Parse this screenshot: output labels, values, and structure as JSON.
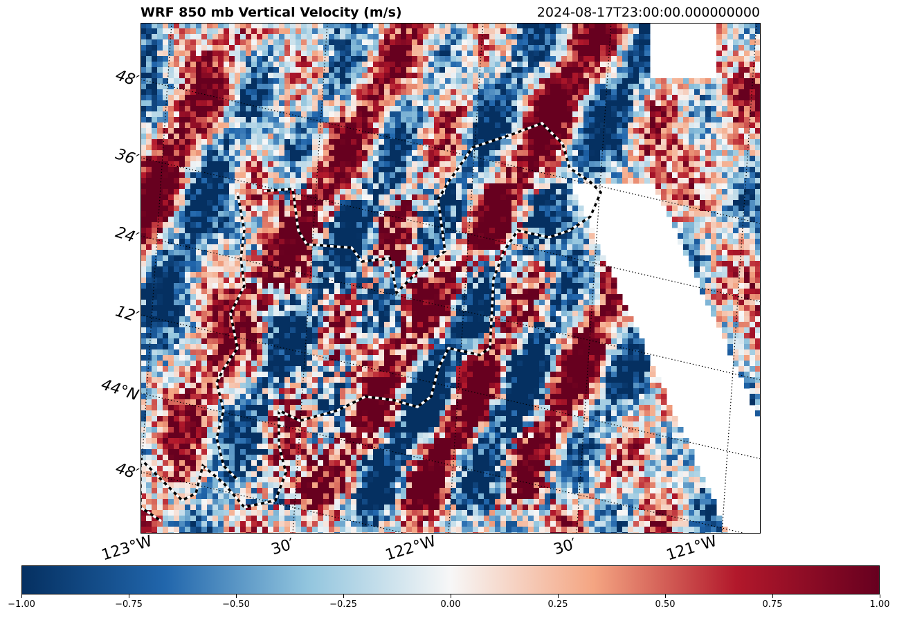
{
  "chart_data": {
    "type": "heatmap",
    "title": "WRF 850 mb Vertical Velocity (m/s)",
    "time_label": "2024-08-17T23:00:00.000000000",
    "variable": "Vertical Velocity",
    "units": "m/s",
    "level": "850 mb",
    "lat_labels": [
      "48′",
      "36′",
      "24′",
      "12′",
      "44°N",
      "48′"
    ],
    "lat_values": [
      44.8,
      44.6,
      44.4,
      44.2,
      44.0,
      43.8
    ],
    "lon_labels": [
      "123°W",
      "30′",
      "122°W",
      "30′",
      "121°W"
    ],
    "lon_values": [
      -123.0,
      -122.5,
      -122.0,
      -121.5,
      -121.0
    ],
    "colormap": "RdBu_r",
    "vmin": -1.0,
    "vmax": 1.0,
    "colorbar_ticks": [
      "−1.00",
      "−0.75",
      "−0.50",
      "−0.25",
      "0.00",
      "0.25",
      "0.50",
      "0.75",
      "1.00"
    ],
    "colorbar_tick_values": [
      -1.0,
      -0.75,
      -0.5,
      -0.25,
      0.0,
      0.25,
      0.5,
      0.75,
      1.0
    ],
    "gridlines": "dotted",
    "boundary": "dashed black and white outline",
    "field_description": "gridded vertical velocity values across the model domain"
  },
  "colors": {
    "dark_blue": "#053061",
    "blue": "#2166ac",
    "light_blue": "#92c5de",
    "white": "#f7f7f7",
    "light_red": "#f4a582",
    "red": "#b2182b",
    "dark_red": "#67001f"
  }
}
